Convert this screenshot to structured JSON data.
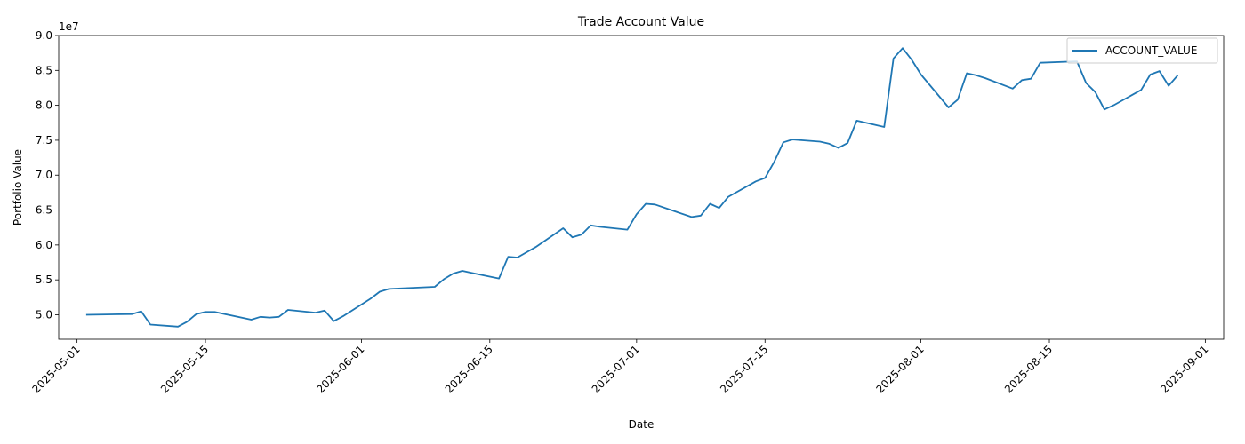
{
  "chart_data": {
    "type": "line",
    "title": "Trade Account Value",
    "xlabel": "Date",
    "ylabel": "Portfolio Value",
    "y_scale_label": "1e7",
    "xlim": [
      "2025-04-29",
      "2025-09-03"
    ],
    "ylim": [
      46500000,
      90000000
    ],
    "x_ticks": [
      "2025-05-01",
      "2025-05-15",
      "2025-06-01",
      "2025-06-15",
      "2025-07-01",
      "2025-07-15",
      "2025-08-01",
      "2025-08-15",
      "2025-09-01"
    ],
    "y_ticks": [
      50000000,
      55000000,
      60000000,
      65000000,
      70000000,
      75000000,
      80000000,
      85000000,
      90000000
    ],
    "y_tick_labels": [
      "5.0",
      "5.5",
      "6.0",
      "6.5",
      "7.0",
      "7.5",
      "8.0",
      "8.5",
      "9.0"
    ],
    "legend_position": "top-right",
    "grid": false,
    "series": [
      {
        "name": "ACCOUNT_VALUE",
        "color": "#1f77b4",
        "x": [
          "2025-05-02",
          "2025-05-07",
          "2025-05-08",
          "2025-05-09",
          "2025-05-12",
          "2025-05-13",
          "2025-05-14",
          "2025-05-15",
          "2025-05-16",
          "2025-05-20",
          "2025-05-21",
          "2025-05-22",
          "2025-05-23",
          "2025-05-24",
          "2025-05-27",
          "2025-05-28",
          "2025-05-29",
          "2025-05-30",
          "2025-06-02",
          "2025-06-03",
          "2025-06-04",
          "2025-06-09",
          "2025-06-10",
          "2025-06-11",
          "2025-06-12",
          "2025-06-13",
          "2025-06-16",
          "2025-06-17",
          "2025-06-18",
          "2025-06-20",
          "2025-06-23",
          "2025-06-24",
          "2025-06-25",
          "2025-06-26",
          "2025-06-27",
          "2025-06-30",
          "2025-07-01",
          "2025-07-02",
          "2025-07-03",
          "2025-07-07",
          "2025-07-08",
          "2025-07-09",
          "2025-07-10",
          "2025-07-11",
          "2025-07-14",
          "2025-07-15",
          "2025-07-16",
          "2025-07-17",
          "2025-07-18",
          "2025-07-21",
          "2025-07-22",
          "2025-07-23",
          "2025-07-24",
          "2025-07-25",
          "2025-07-28",
          "2025-07-29",
          "2025-07-30",
          "2025-07-31",
          "2025-08-01",
          "2025-08-04",
          "2025-08-05",
          "2025-08-06",
          "2025-08-07",
          "2025-08-08",
          "2025-08-11",
          "2025-08-12",
          "2025-08-13",
          "2025-08-14",
          "2025-08-18",
          "2025-08-19",
          "2025-08-20",
          "2025-08-21",
          "2025-08-22",
          "2025-08-25",
          "2025-08-26",
          "2025-08-27",
          "2025-08-28",
          "2025-08-29"
        ],
        "values": [
          50000000,
          50100000,
          50500000,
          48600000,
          48300000,
          49000000,
          50100000,
          50400000,
          50400000,
          49300000,
          49700000,
          49600000,
          49700000,
          50700000,
          50300000,
          50600000,
          49100000,
          49800000,
          52300000,
          53300000,
          53700000,
          54000000,
          55100000,
          55900000,
          56300000,
          56000000,
          55200000,
          58300000,
          58200000,
          59700000,
          62400000,
          61100000,
          61500000,
          62800000,
          62600000,
          62200000,
          64400000,
          65900000,
          65800000,
          64000000,
          64200000,
          65900000,
          65300000,
          66900000,
          69100000,
          69600000,
          71900000,
          74700000,
          75100000,
          74800000,
          74500000,
          73900000,
          74600000,
          77800000,
          76900000,
          86700000,
          88200000,
          86500000,
          84400000,
          79700000,
          80800000,
          84600000,
          84300000,
          83900000,
          82400000,
          83600000,
          83800000,
          86100000,
          86300000,
          83200000,
          81900000,
          79400000,
          80000000,
          82200000,
          84400000,
          84900000,
          82800000,
          84300000
        ]
      }
    ]
  }
}
